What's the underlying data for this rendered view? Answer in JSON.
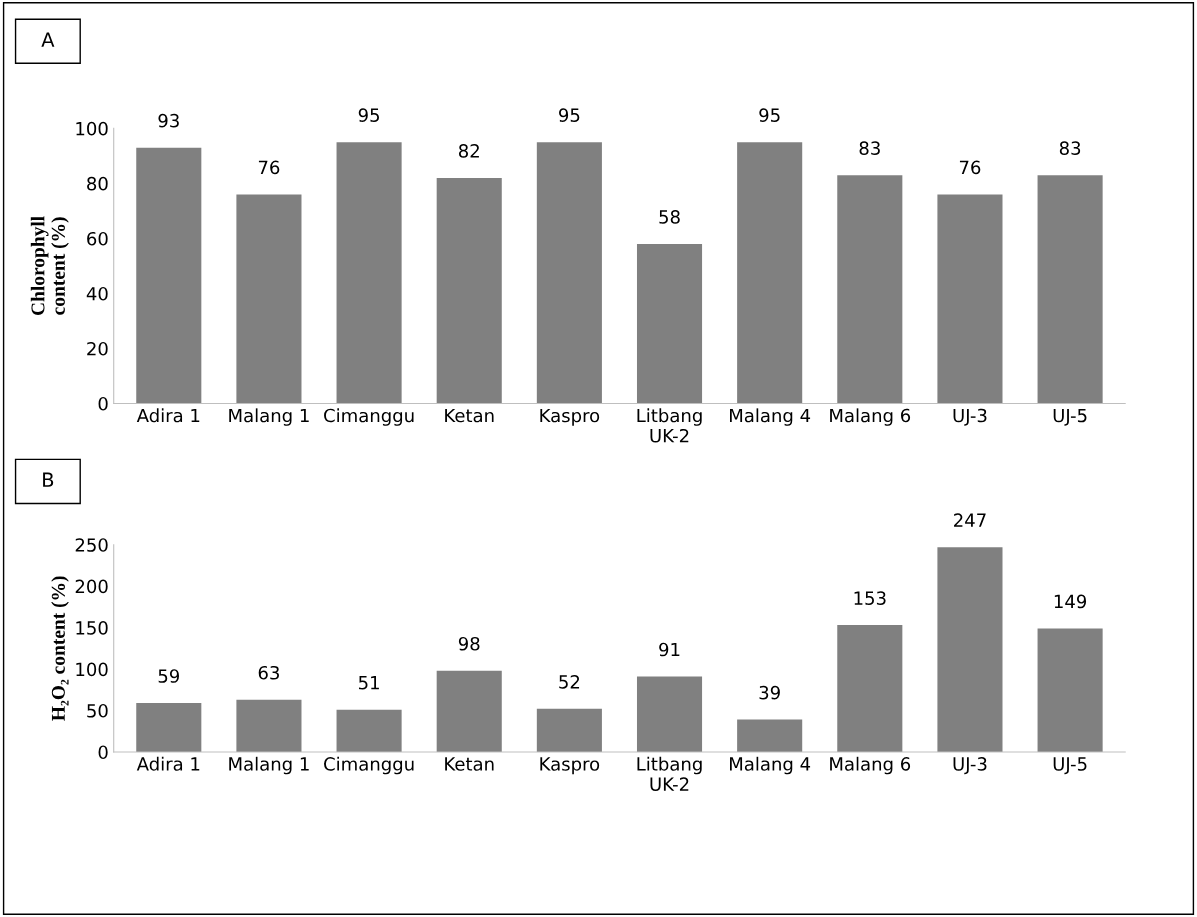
{
  "chart_data": [
    {
      "type": "bar",
      "title": "A",
      "ylabel": "Chlorophyll\ncontent (%)",
      "categories": [
        "Adira 1",
        "Malang 1",
        "Cimanggu",
        "Ketan",
        "Kaspro",
        "Litbang\nUK-2",
        "Malang 4",
        "Malang 6",
        "UJ-3",
        "UJ-5"
      ],
      "values": [
        93,
        76,
        95,
        82,
        95,
        58,
        95,
        83,
        76,
        83
      ],
      "color": "#808080",
      "ylim": [
        0,
        100
      ],
      "yticks": [
        0,
        20,
        40,
        60,
        80,
        100
      ],
      "data_labels": true
    },
    {
      "type": "bar",
      "title": "B",
      "ylabel": "H₂O₂ content (%)",
      "categories": [
        "Adira 1",
        "Malang 1",
        "Cimanggu",
        "Ketan",
        "Kaspro",
        "Litbang\nUK-2",
        "Malang 4",
        "Malang 6",
        "UJ-3",
        "UJ-5"
      ],
      "values": [
        59,
        63,
        51,
        98,
        52,
        91,
        39,
        153,
        247,
        149
      ],
      "color": "#808080",
      "ylim": [
        0,
        250
      ],
      "yticks": [
        0,
        50,
        100,
        150,
        200,
        250
      ],
      "data_labels": true
    }
  ]
}
